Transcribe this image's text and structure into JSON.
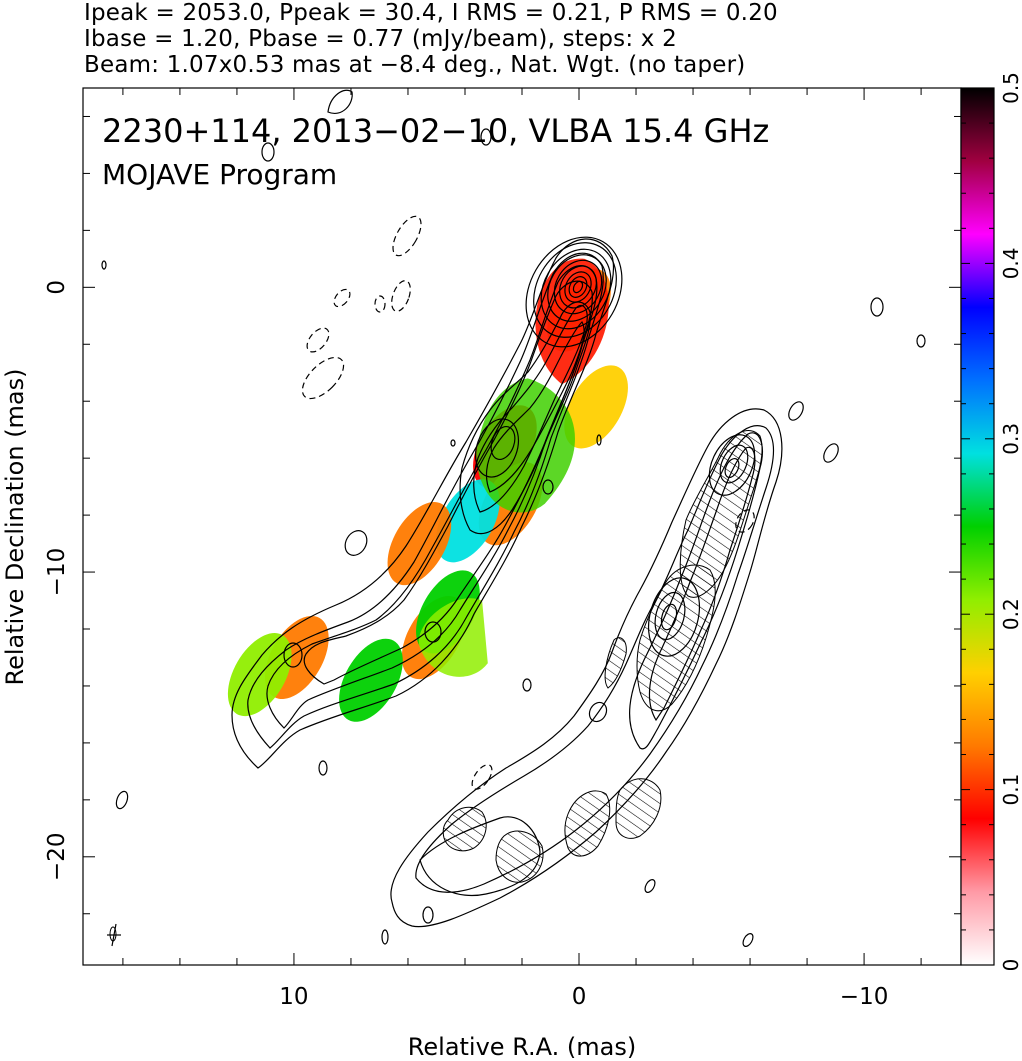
{
  "header": {
    "line1": "Ipeak = 2053.0, Ppeak = 30.4, I RMS = 0.21, P RMS = 0.20",
    "line2": "Ibase = 1.20, Pbase = 0.77 (mJy/beam), steps: x 2",
    "line3": "Beam: 1.07x0.53 mas at −8.4 deg., Nat. Wgt. (no taper)"
  },
  "chart_data": {
    "type": "heatmap",
    "title": "2230+114, 2013−02−10, VLBA 15.4 GHz",
    "subtitle": "MOJAVE Program",
    "xlabel": "Relative R.A. (mas)",
    "ylabel": "Relative Declination (mas)",
    "xlim": [
      17.4,
      -13.4
    ],
    "ylim": [
      -23.8,
      7.0
    ],
    "x_ticks": [
      10,
      0,
      -10
    ],
    "x_tick_labels": [
      "10",
      "0",
      "−10"
    ],
    "y_ticks": [
      0,
      -10,
      -20
    ],
    "y_tick_labels": [
      "0",
      "−10",
      "−20"
    ],
    "colorbar": {
      "range": [
        0,
        0.5
      ],
      "ticks": [
        0,
        0.1,
        0.2,
        0.3,
        0.4,
        0.5
      ],
      "tick_labels": [
        "0",
        "0.1",
        "0.2",
        "0.3",
        "0.4",
        "0.5"
      ],
      "colormap": [
        "#ffffff",
        "#ff9aa6",
        "#ff0000",
        "#ff7a00",
        "#ffd000",
        "#90ee00",
        "#00d000",
        "#00e0e0",
        "#0070ff",
        "#0000ff",
        "#ff00ff",
        "#a00040",
        "#000000"
      ]
    },
    "ibase_mJy_per_beam": 1.2,
    "pbase_mJy_per_beam": 0.77,
    "contour_step": 2,
    "beam": {
      "major_mas": 1.07,
      "minor_mas": 0.53,
      "pa_deg": -8.4
    },
    "fractional_polarization_regions": [
      {
        "ra": 0.0,
        "dec": -0.8,
        "value": 0.12
      },
      {
        "ra": -0.6,
        "dec": -4.2,
        "value": 0.18
      },
      {
        "ra": 2.6,
        "dec": -5.6,
        "value": 0.1
      },
      {
        "ra": 2.4,
        "dec": -7.6,
        "value": 0.13
      },
      {
        "ra": 3.9,
        "dec": -8.2,
        "value": 0.3
      },
      {
        "ra": 5.1,
        "dec": -12.3,
        "value": 0.12
      },
      {
        "ra": 4.6,
        "dec": -11.4,
        "value": 0.27
      },
      {
        "ra": 9.9,
        "dec": -13.0,
        "value": 0.11
      },
      {
        "ra": 7.3,
        "dec": -13.8,
        "value": 0.24
      },
      {
        "ra": 5.6,
        "dec": -9.0,
        "value": 0.13
      },
      {
        "ra": 11.2,
        "dec": -13.6,
        "value": 0.2
      }
    ],
    "colors": {
      "contour": "#000000",
      "background": "#ffffff",
      "frame": "#000000"
    }
  }
}
